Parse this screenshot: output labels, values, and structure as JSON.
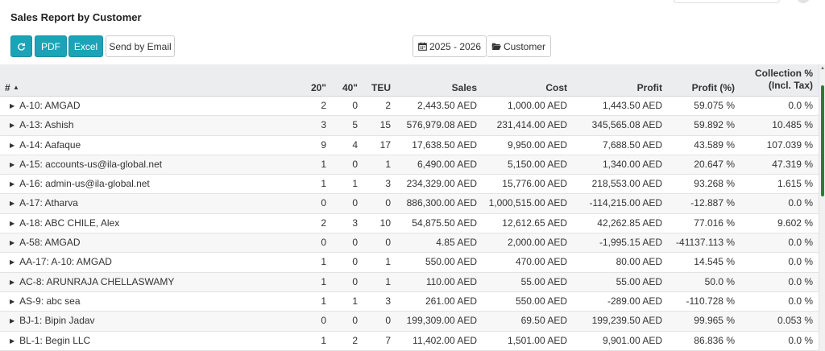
{
  "header": {
    "title": "Sales Report by Customer"
  },
  "toolbar": {
    "refresh_icon": "refresh-icon",
    "pdf_label": "PDF",
    "excel_label": "Excel",
    "email_label": "Send by Email",
    "year_label": "2025 - 2026",
    "customer_label": "Customer",
    "accent_color": "#1ba3b8"
  },
  "table": {
    "columns": {
      "hash": "#",
      "c20": "20\"",
      "c40": "40\"",
      "teu": "TEU",
      "sales": "Sales",
      "cost": "Cost",
      "profit": "Profit",
      "profit_pct": "Profit (%)",
      "coll_line1": "Collection %",
      "coll_line2": "(Incl. Tax)"
    },
    "rows": [
      {
        "name": "A-10: AMGAD",
        "c20": "2",
        "c40": "0",
        "teu": "2",
        "sales": "2,443.50 AED",
        "cost": "1,000.00 AED",
        "profit": "1,443.50 AED",
        "profit_pct": "59.075 %",
        "coll": "0.0 %"
      },
      {
        "name": "A-13: Ashish",
        "c20": "3",
        "c40": "5",
        "teu": "15",
        "sales": "576,979.08 AED",
        "cost": "231,414.00 AED",
        "profit": "345,565.08 AED",
        "profit_pct": "59.892 %",
        "coll": "10.485 %"
      },
      {
        "name": "A-14: Aafaque",
        "c20": "9",
        "c40": "4",
        "teu": "17",
        "sales": "17,638.50 AED",
        "cost": "9,950.00 AED",
        "profit": "7,688.50 AED",
        "profit_pct": "43.589 %",
        "coll": "107.039 %"
      },
      {
        "name": "A-15: accounts-us@ila-global.net",
        "c20": "1",
        "c40": "0",
        "teu": "1",
        "sales": "6,490.00 AED",
        "cost": "5,150.00 AED",
        "profit": "1,340.00 AED",
        "profit_pct": "20.647 %",
        "coll": "47.319 %"
      },
      {
        "name": "A-16: admin-us@ila-global.net",
        "c20": "1",
        "c40": "1",
        "teu": "3",
        "sales": "234,329.00 AED",
        "cost": "15,776.00 AED",
        "profit": "218,553.00 AED",
        "profit_pct": "93.268 %",
        "coll": "1.615 %"
      },
      {
        "name": "A-17: Atharva",
        "c20": "0",
        "c40": "0",
        "teu": "0",
        "sales": "886,300.00 AED",
        "cost": "1,000,515.00 AED",
        "profit": "-114,215.00 AED",
        "profit_pct": "-12.887 %",
        "coll": "0.0 %"
      },
      {
        "name": "A-18: ABC CHILE, Alex",
        "c20": "2",
        "c40": "3",
        "teu": "10",
        "sales": "54,875.50 AED",
        "cost": "12,612.65 AED",
        "profit": "42,262.85 AED",
        "profit_pct": "77.016 %",
        "coll": "9.602 %"
      },
      {
        "name": "A-58: AMGAD",
        "c20": "0",
        "c40": "0",
        "teu": "0",
        "sales": "4.85 AED",
        "cost": "2,000.00 AED",
        "profit": "-1,995.15 AED",
        "profit_pct": "-41137.113 %",
        "coll": "0.0 %"
      },
      {
        "name": "AA-17: A-10: AMGAD",
        "c20": "1",
        "c40": "0",
        "teu": "1",
        "sales": "550.00 AED",
        "cost": "470.00 AED",
        "profit": "80.00 AED",
        "profit_pct": "14.545 %",
        "coll": "0.0 %"
      },
      {
        "name": "AC-8: ARUNRAJA CHELLASWAMY",
        "c20": "1",
        "c40": "0",
        "teu": "1",
        "sales": "110.00 AED",
        "cost": "55.00 AED",
        "profit": "55.00 AED",
        "profit_pct": "50.0 %",
        "coll": "0.0 %"
      },
      {
        "name": "AS-9: abc sea",
        "c20": "1",
        "c40": "1",
        "teu": "3",
        "sales": "261.00 AED",
        "cost": "550.00 AED",
        "profit": "-289.00 AED",
        "profit_pct": "-110.728 %",
        "coll": "0.0 %"
      },
      {
        "name": "BJ-1: Bipin Jadav",
        "c20": "0",
        "c40": "0",
        "teu": "0",
        "sales": "199,309.00 AED",
        "cost": "69.50 AED",
        "profit": "199,239.50 AED",
        "profit_pct": "99.965 %",
        "coll": "0.053 %"
      },
      {
        "name": "BL-1: Begin LLC",
        "c20": "1",
        "c40": "2",
        "teu": "7",
        "sales": "11,402.00 AED",
        "cost": "1,501.00 AED",
        "profit": "9,901.00 AED",
        "profit_pct": "86.836 %",
        "coll": "0.0 %"
      }
    ]
  }
}
